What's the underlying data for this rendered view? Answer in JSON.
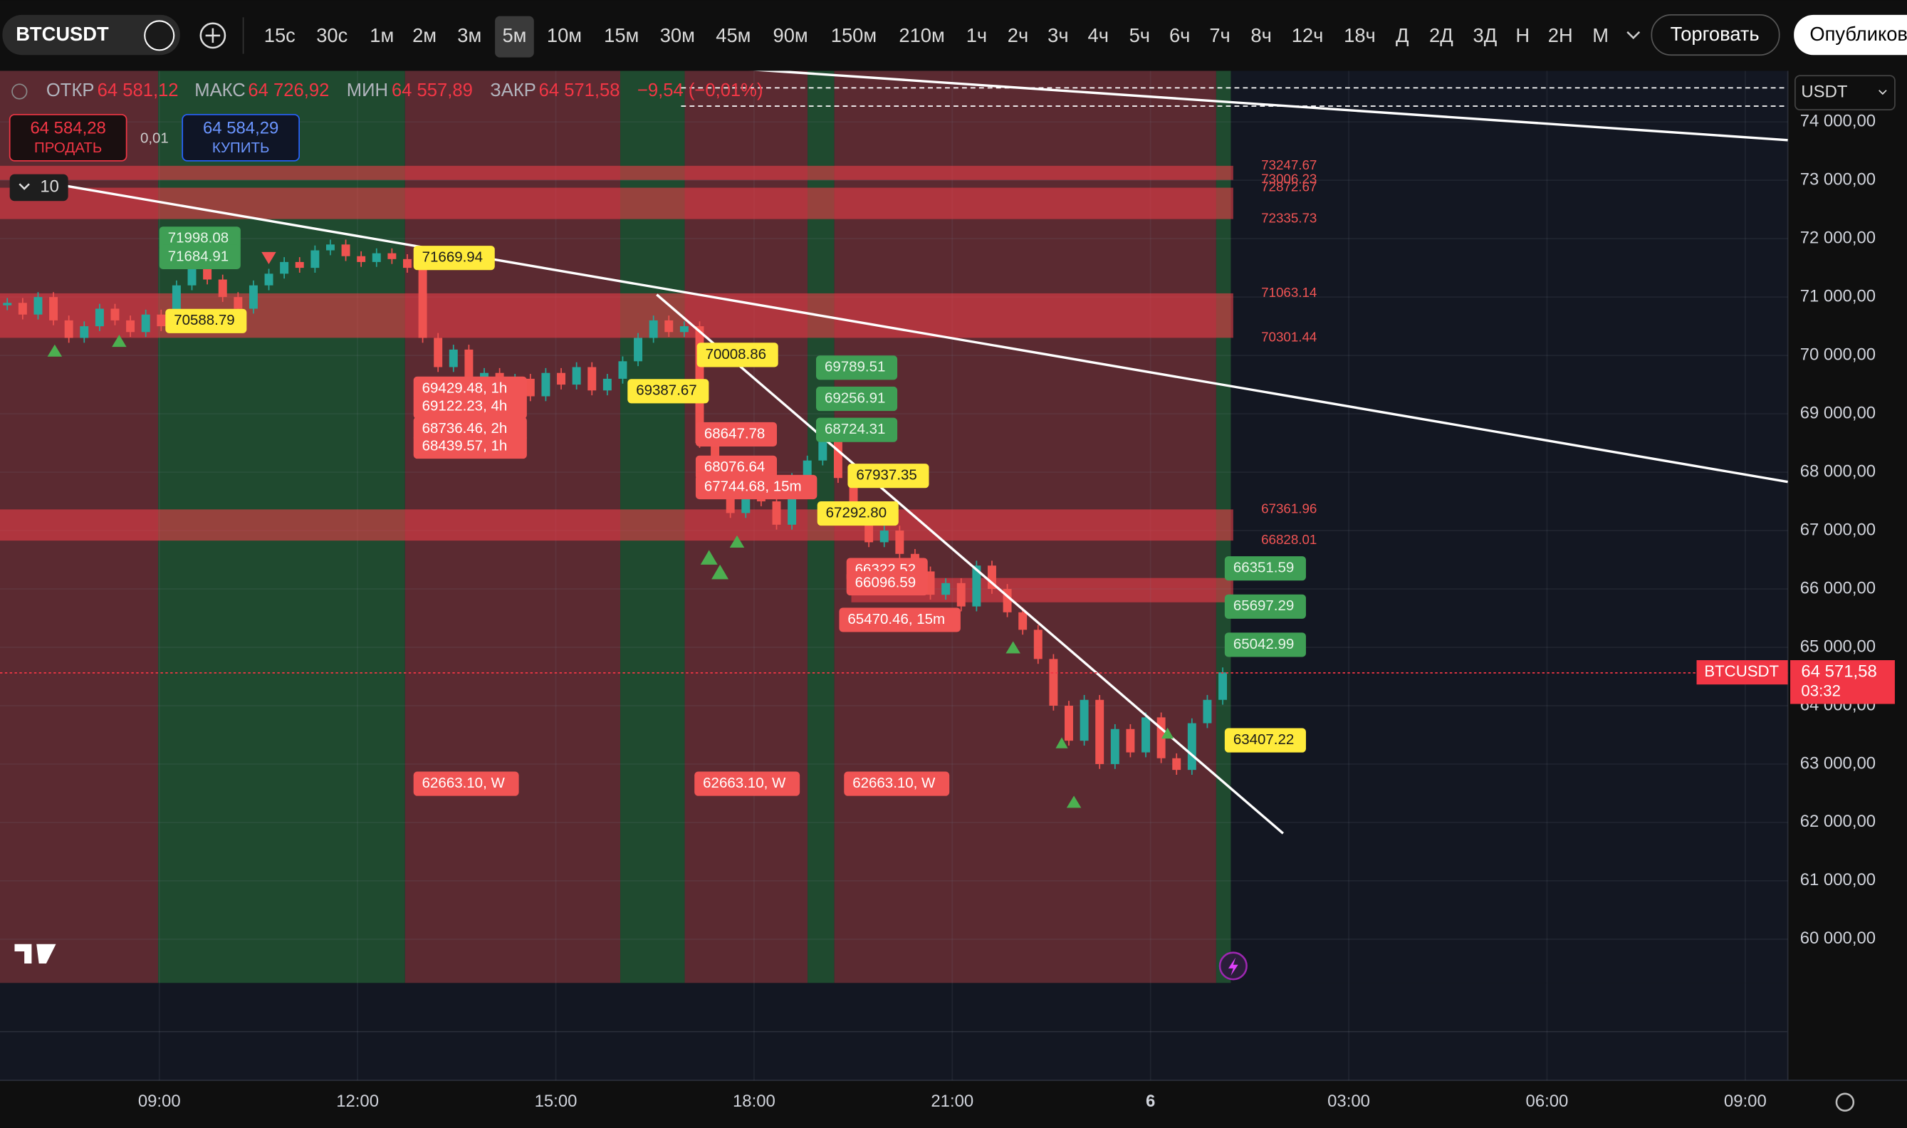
{
  "toolbar": {
    "symbol": "BTCUSDT",
    "intervals": [
      "15с",
      "30с",
      "1м",
      "2м",
      "3м",
      "5м",
      "10м",
      "15м",
      "30м",
      "45м",
      "90м",
      "150м",
      "210м",
      "1ч",
      "2ч",
      "3ч",
      "4ч",
      "5ч",
      "6ч",
      "7ч",
      "8ч",
      "12ч",
      "18ч",
      "Д",
      "2Д",
      "3Д",
      "Н",
      "2Н",
      "М"
    ],
    "active_interval": 5,
    "trade_button": "Торговать",
    "publish_button": "Опубликовать"
  },
  "legend": {
    "items": [
      {
        "label": "ОТКР",
        "value": "64 581,12"
      },
      {
        "label": "МАКС",
        "value": "64 726,92"
      },
      {
        "label": "МИН",
        "value": "64 557,89"
      },
      {
        "label": "ЗАКР",
        "value": "64 571,58"
      }
    ],
    "change": "−9,54 (−0,01%)"
  },
  "trade": {
    "sell_price": "64 584,28",
    "sell": "ПРОДАТЬ",
    "quantity": "0,01",
    "buy_price": "64 584,29",
    "buy": "КУПИТЬ"
  },
  "indicators_count": 10,
  "currency": "USDT",
  "price_axis": {
    "ylim": [
      59250,
      74875
    ],
    "yticks": [
      {
        "value": 74000,
        "label": "74 000,00"
      },
      {
        "value": 73000,
        "label": "73 000,00"
      },
      {
        "value": 72000,
        "label": "72 000,00"
      },
      {
        "value": 71000,
        "label": "71 000,00"
      },
      {
        "value": 70000,
        "label": "70 000,00"
      },
      {
        "value": 69000,
        "label": "69 000,00"
      },
      {
        "value": 68000,
        "label": "68 000,00"
      },
      {
        "value": 67000,
        "label": "67 000,00"
      },
      {
        "value": 66000,
        "label": "66 000,00"
      },
      {
        "value": 65000,
        "label": "65 000,00"
      },
      {
        "value": 64000,
        "label": "64 000,00"
      },
      {
        "value": 63000,
        "label": "63 000,00"
      },
      {
        "value": 62000,
        "label": "62 000,00"
      },
      {
        "value": 61000,
        "label": "61 000,00"
      },
      {
        "value": 60000,
        "label": "60 000,00"
      }
    ]
  },
  "time_axis": {
    "labels": [
      "09:00",
      "12:00",
      "15:00",
      "18:00",
      "21:00",
      "6",
      "03:00",
      "06:00",
      "09:00"
    ]
  },
  "price_tag": {
    "symbol": "BTCUSDT",
    "value": 64571.58,
    "label": "64 571,58",
    "countdown": "03:32"
  },
  "zones": [
    [
      73247.67,
      73006.23
    ],
    [
      72872.67,
      72335.73
    ],
    [
      71063.14,
      70301.44
    ],
    [
      67361.96,
      66828.01
    ]
  ],
  "tags": [
    {
      "text": "71998.08",
      "kind": "green"
    },
    {
      "text": "71684.91",
      "kind": "green"
    },
    {
      "text": "70588.79",
      "kind": "yellow"
    },
    {
      "text": "71669.94",
      "kind": "yellow"
    },
    {
      "text": "69429.48, 1h",
      "kind": "red"
    },
    {
      "text": "69122.23, 4h",
      "kind": "red"
    },
    {
      "text": "68736.46, 2h",
      "kind": "red"
    },
    {
      "text": "68439.57, 1h",
      "kind": "red"
    },
    {
      "text": "62663.10, W",
      "kind": "red"
    },
    {
      "text": "62663.10, W",
      "kind": "red"
    },
    {
      "text": "62663.10, W",
      "kind": "red"
    },
    {
      "text": "70008.86",
      "kind": "yellow"
    },
    {
      "text": "69387.67",
      "kind": "yellow"
    },
    {
      "text": "68647.78",
      "kind": "red"
    },
    {
      "text": "68076.64",
      "kind": "red"
    },
    {
      "text": "67744.68, 15m",
      "kind": "red"
    },
    {
      "text": "69789.51",
      "kind": "green"
    },
    {
      "text": "69256.91",
      "kind": "green"
    },
    {
      "text": "68724.31",
      "kind": "green"
    },
    {
      "text": "67937.35",
      "kind": "yellow"
    },
    {
      "text": "67292.80",
      "kind": "yellow"
    },
    {
      "text": "66322.52",
      "kind": "red"
    },
    {
      "text": "66096.59",
      "kind": "red"
    },
    {
      "text": "65470.46, 15m",
      "kind": "red"
    },
    {
      "text": "66351.59",
      "kind": "green"
    },
    {
      "text": "65697.29",
      "kind": "green"
    },
    {
      "text": "65042.99",
      "kind": "green"
    },
    {
      "text": "63407.22",
      "kind": "yellow"
    }
  ],
  "price": {
    "closes": [
      70900,
      70700,
      71000,
      70600,
      70300,
      70500,
      70800,
      70600,
      70400,
      70700,
      70500,
      71200,
      71500,
      71300,
      71000,
      70800,
      71200,
      71400,
      71600,
      71500,
      71800,
      71900,
      71700,
      71600,
      71750,
      71650,
      71500,
      70300,
      69800,
      70100,
      69400,
      69700,
      69200,
      69600,
      69300,
      69700,
      69500,
      69800,
      69400,
      69600,
      69900,
      70300,
      70600,
      70400,
      70500,
      68500,
      67800,
      67300,
      68000,
      67500,
      67100,
      67900,
      68200,
      68600,
      67900,
      67200,
      66800,
      67000,
      66600,
      66300,
      65900,
      66100,
      65700,
      66400,
      66000,
      65600,
      65300,
      64800,
      64000,
      63400,
      64100,
      63000,
      63600,
      63200,
      63800,
      63100,
      62900,
      63700,
      64100,
      64571.58
    ]
  }
}
